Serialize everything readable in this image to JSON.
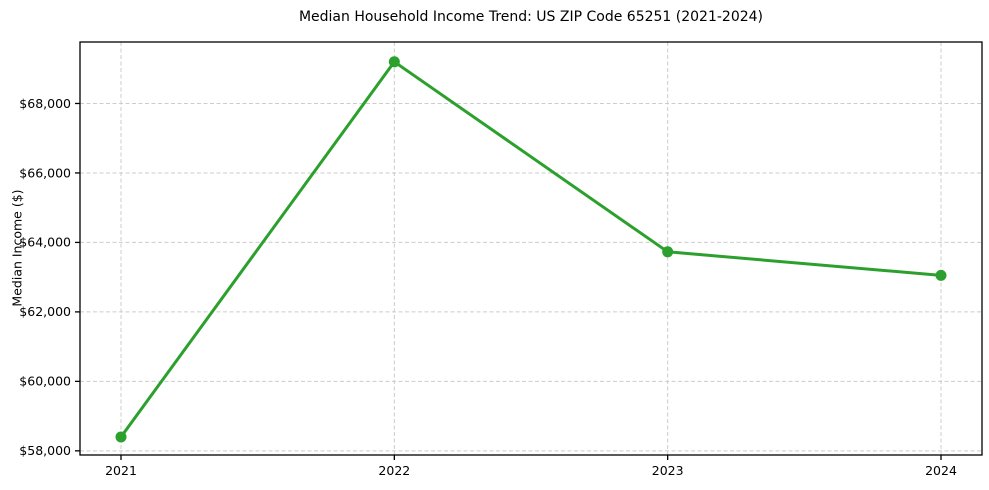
{
  "chart_data": {
    "type": "line",
    "title": "Median Household Income Trend: US ZIP Code 65251 (2021-2024)",
    "xlabel": "",
    "ylabel": "Median Income ($)",
    "categories": [
      "2021",
      "2022",
      "2023",
      "2024"
    ],
    "series": [
      {
        "name": "Median Household Income",
        "values": [
          58400,
          69200,
          63730,
          63050
        ],
        "color": "#2ca02c",
        "marker": "circle",
        "marker_radius": 5.5,
        "line_width": 3
      }
    ],
    "ytick_values": [
      58000,
      60000,
      62000,
      64000,
      66000,
      68000
    ],
    "ytick_labels": [
      "$58,000",
      "$60,000",
      "$62,000",
      "$64,000",
      "$66,000",
      "$68,000"
    ],
    "ylim": [
      57880,
      69770
    ],
    "x_margin": 0.15,
    "grid": true,
    "grid_style": "dashed",
    "legend_position": "none",
    "colors": {
      "line": "#2ca02c",
      "marker": "#2ca02c",
      "grid": "#cccccc",
      "spine": "#000000",
      "text": "#000000",
      "background": "#ffffff"
    }
  }
}
